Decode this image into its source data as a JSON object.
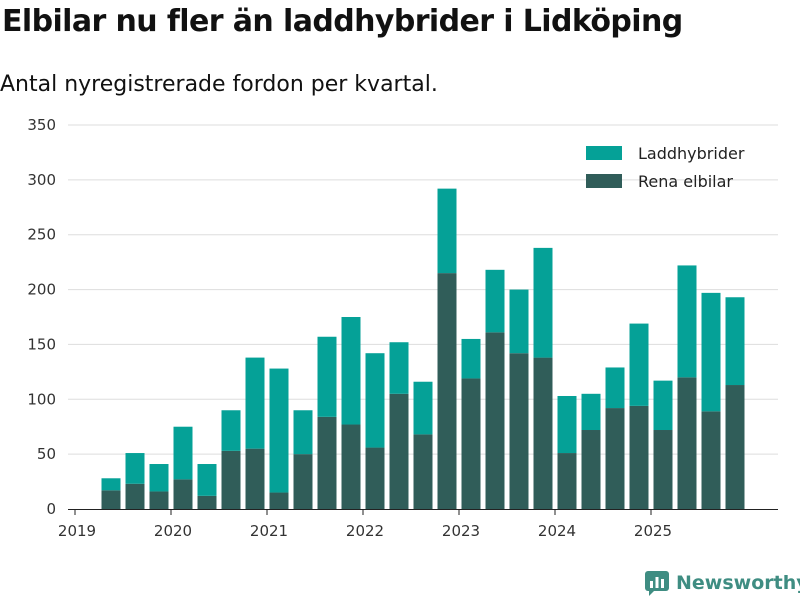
{
  "title": "Elbilar nu fler än laddhybrider i Lidköping",
  "subtitle": "Antal nyregistrerade fordon per kvartal.",
  "brand": {
    "name": "Newsworthy",
    "icon": "newsworthy-logo-icon"
  },
  "colors": {
    "laddhybrider": "#05a197",
    "elbilar": "#305d59",
    "grid": "#dddddd"
  },
  "chart_data": {
    "type": "bar",
    "stacked": true,
    "title": "Elbilar nu fler än laddhybrider i Lidköping",
    "subtitle": "Antal nyregistrerade fordon per kvartal.",
    "ylim": [
      0,
      350
    ],
    "yticks": [
      0,
      50,
      100,
      150,
      200,
      250,
      300,
      350
    ],
    "xtick_labels": [
      "2019",
      "2020",
      "2021",
      "2022",
      "2023",
      "2024",
      "2025"
    ],
    "legend_position": "top-right",
    "categories": [
      "2019Q2",
      "2019Q3",
      "2019Q4",
      "2020Q1",
      "2020Q2",
      "2020Q3",
      "2020Q4",
      "2021Q1",
      "2021Q2",
      "2021Q3",
      "2021Q4",
      "2022Q1",
      "2022Q2",
      "2022Q3",
      "2022Q4",
      "2023Q1",
      "2023Q2",
      "2023Q3",
      "2023Q4",
      "2024Q1",
      "2024Q2",
      "2024Q3",
      "2024Q4",
      "2025Q1",
      "2025Q2",
      "2025Q3",
      "2025Q4"
    ],
    "series": [
      {
        "name": "Rena elbilar",
        "values": [
          17,
          23,
          16,
          27,
          12,
          53,
          55,
          15,
          50,
          84,
          77,
          56,
          105,
          68,
          215,
          119,
          161,
          142,
          138,
          51,
          72,
          92,
          94,
          72,
          120,
          89,
          113
        ]
      },
      {
        "name": "Laddhybrider",
        "values": [
          11,
          28,
          25,
          48,
          29,
          37,
          83,
          113,
          40,
          73,
          98,
          86,
          47,
          48,
          77,
          36,
          57,
          58,
          100,
          52,
          33,
          37,
          75,
          45,
          102,
          108,
          80
        ]
      }
    ],
    "legend": [
      "Laddhybrider",
      "Rena elbilar"
    ]
  }
}
